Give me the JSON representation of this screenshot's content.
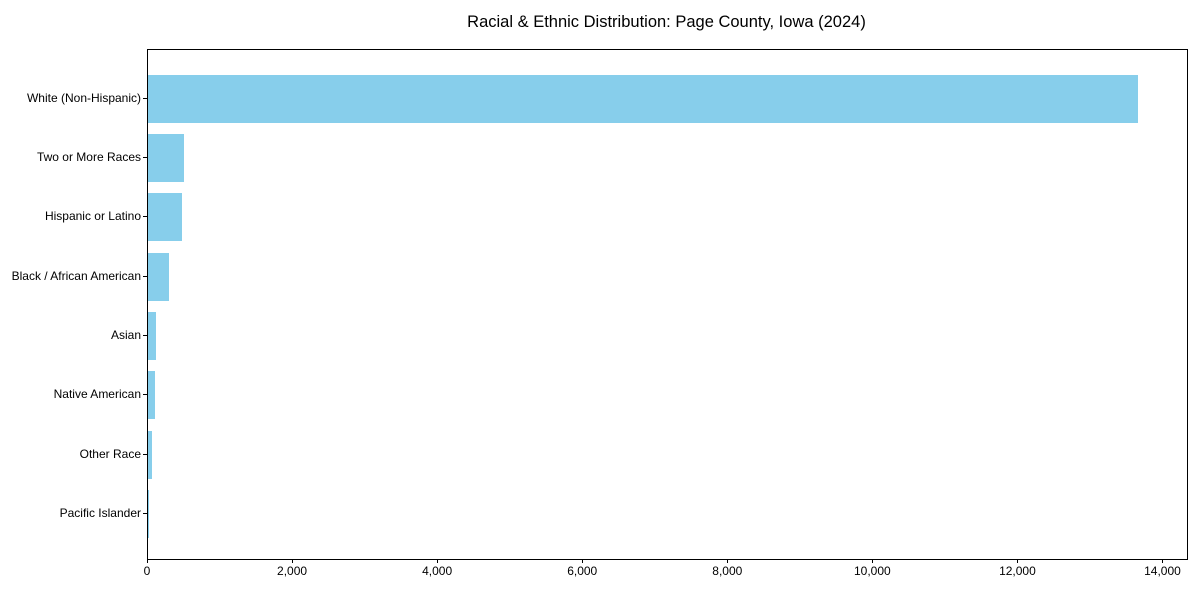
{
  "chart_data": {
    "type": "bar",
    "orientation": "horizontal",
    "title": "Racial & Ethnic Distribution: Page County, Iowa (2024)",
    "categories": [
      "White (Non-Hispanic)",
      "Two or More Races",
      "Hispanic or Latino",
      "Black / African American",
      "Asian",
      "Native American",
      "Other Race",
      "Pacific Islander"
    ],
    "values": [
      13642,
      490,
      470,
      283,
      104,
      90,
      52,
      6
    ],
    "x_ticks": [
      0,
      2000,
      4000,
      6000,
      8000,
      10000,
      12000,
      14000
    ],
    "x_tick_labels": [
      "0",
      "2,000",
      "4,000",
      "6,000",
      "8,000",
      "10,000",
      "12,000",
      "14,000"
    ],
    "xlim": [
      0,
      14324
    ],
    "xlabel": "",
    "ylabel": "",
    "bar_color": "#87CEEB",
    "axis_color": "#000000",
    "grid": false,
    "legend": null
  }
}
